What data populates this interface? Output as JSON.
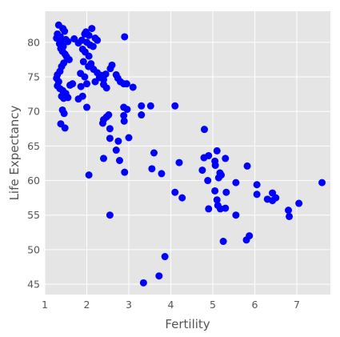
{
  "chart_data": {
    "type": "scatter",
    "title": "",
    "xlabel": "Fertility",
    "ylabel": "Life Expectancy",
    "xlim": [
      1,
      7.8
    ],
    "ylim": [
      43.5,
      84.5
    ],
    "xticks": [
      1,
      2,
      3,
      4,
      5,
      6,
      7
    ],
    "yticks": [
      45,
      50,
      55,
      60,
      65,
      70,
      75,
      80
    ],
    "grid": true,
    "legend": "none",
    "colors": {
      "point": "#0000ff",
      "plot_bg": "#e5e5e5",
      "grid": "#ffffff",
      "text": "#555555"
    },
    "points": [
      [
        1.33,
        82.5
      ],
      [
        1.43,
        82.0
      ],
      [
        1.47,
        81.6
      ],
      [
        1.3,
        81.2
      ],
      [
        1.37,
        80.8
      ],
      [
        1.28,
        80.6
      ],
      [
        1.4,
        80.2
      ],
      [
        1.5,
        80.4
      ],
      [
        1.35,
        79.8
      ],
      [
        1.44,
        79.4
      ],
      [
        1.55,
        80.1
      ],
      [
        1.38,
        79.1
      ],
      [
        1.42,
        78.7
      ],
      [
        1.48,
        78.3
      ],
      [
        1.52,
        77.9
      ],
      [
        1.58,
        77.5
      ],
      [
        1.45,
        77.0
      ],
      [
        1.4,
        76.5
      ],
      [
        1.36,
        75.8
      ],
      [
        1.3,
        75.3
      ],
      [
        1.28,
        74.8
      ],
      [
        1.33,
        74.3
      ],
      [
        1.3,
        73.7
      ],
      [
        1.36,
        73.3
      ],
      [
        1.43,
        73.0
      ],
      [
        1.5,
        72.6
      ],
      [
        1.4,
        72.2
      ],
      [
        1.45,
        71.9
      ],
      [
        1.55,
        72.0
      ],
      [
        1.6,
        73.8
      ],
      [
        1.66,
        74.0
      ],
      [
        1.42,
        70.2
      ],
      [
        1.46,
        69.7
      ],
      [
        1.38,
        68.2
      ],
      [
        1.48,
        67.6
      ],
      [
        1.7,
        80.5
      ],
      [
        1.8,
        79.9
      ],
      [
        1.88,
        80.3
      ],
      [
        1.95,
        81.2
      ],
      [
        1.98,
        81.5
      ],
      [
        2.05,
        81.0
      ],
      [
        2.0,
        80.0
      ],
      [
        2.08,
        79.6
      ],
      [
        1.9,
        79.0
      ],
      [
        1.96,
        78.6
      ],
      [
        2.12,
        82.0
      ],
      [
        2.2,
        80.6
      ],
      [
        2.25,
        80.3
      ],
      [
        2.15,
        79.4
      ],
      [
        2.05,
        78.0
      ],
      [
        1.92,
        77.2
      ],
      [
        2.1,
        76.9
      ],
      [
        2.04,
        76.5
      ],
      [
        2.16,
        76.1
      ],
      [
        2.25,
        75.6
      ],
      [
        2.35,
        75.2
      ],
      [
        2.45,
        75.4
      ],
      [
        2.3,
        74.9
      ],
      [
        2.4,
        74.6
      ],
      [
        2.2,
        74.3
      ],
      [
        1.85,
        75.5
      ],
      [
        1.95,
        75.0
      ],
      [
        2.0,
        74.0
      ],
      [
        1.86,
        73.6
      ],
      [
        1.9,
        72.2
      ],
      [
        1.8,
        71.8
      ],
      [
        2.0,
        70.6
      ],
      [
        2.4,
        73.9
      ],
      [
        2.47,
        73.4
      ],
      [
        2.6,
        76.7
      ],
      [
        2.56,
        76.2
      ],
      [
        2.7,
        75.3
      ],
      [
        2.74,
        74.8
      ],
      [
        2.8,
        74.3
      ],
      [
        2.88,
        74.0
      ],
      [
        2.9,
        80.8
      ],
      [
        2.95,
        74.0
      ],
      [
        3.1,
        73.5
      ],
      [
        2.88,
        70.6
      ],
      [
        2.96,
        70.3
      ],
      [
        2.88,
        69.4
      ],
      [
        3.3,
        70.8
      ],
      [
        3.52,
        70.8
      ],
      [
        3.3,
        69.5
      ],
      [
        2.89,
        68.6
      ],
      [
        2.47,
        69.2
      ],
      [
        2.52,
        69.5
      ],
      [
        2.4,
        68.8
      ],
      [
        2.38,
        68.3
      ],
      [
        2.55,
        67.5
      ],
      [
        2.55,
        66.1
      ],
      [
        2.75,
        65.7
      ],
      [
        3.0,
        66.2
      ],
      [
        2.7,
        64.4
      ],
      [
        2.4,
        63.2
      ],
      [
        2.78,
        62.9
      ],
      [
        2.9,
        61.2
      ],
      [
        2.05,
        60.8
      ],
      [
        3.6,
        64.0
      ],
      [
        3.55,
        61.7
      ],
      [
        3.78,
        61.0
      ],
      [
        4.2,
        62.6
      ],
      [
        4.1,
        70.8
      ],
      [
        4.8,
        67.4
      ],
      [
        4.79,
        63.3
      ],
      [
        4.9,
        63.6
      ],
      [
        5.1,
        64.3
      ],
      [
        5.05,
        62.8
      ],
      [
        5.3,
        63.2
      ],
      [
        5.06,
        62.2
      ],
      [
        4.75,
        61.5
      ],
      [
        5.17,
        61.1
      ],
      [
        5.14,
        60.4
      ],
      [
        5.2,
        60.8
      ],
      [
        4.88,
        60.0
      ],
      [
        5.55,
        59.7
      ],
      [
        5.82,
        62.1
      ],
      [
        6.05,
        59.4
      ],
      [
        5.05,
        58.5
      ],
      [
        5.32,
        58.3
      ],
      [
        5.12,
        56.4
      ],
      [
        5.3,
        56.0
      ],
      [
        5.18,
        55.9
      ],
      [
        4.9,
        55.9
      ],
      [
        5.1,
        57.2
      ],
      [
        5.55,
        55.0
      ],
      [
        6.05,
        58.0
      ],
      [
        6.3,
        57.3
      ],
      [
        6.42,
        58.2
      ],
      [
        6.5,
        57.5
      ],
      [
        6.42,
        57.1
      ],
      [
        6.8,
        55.7
      ],
      [
        6.82,
        54.8
      ],
      [
        7.05,
        56.7
      ],
      [
        7.6,
        59.7
      ],
      [
        4.1,
        58.3
      ],
      [
        4.27,
        57.5
      ],
      [
        2.55,
        55.0
      ],
      [
        5.25,
        51.2
      ],
      [
        5.8,
        51.4
      ],
      [
        5.87,
        52.0
      ],
      [
        3.86,
        49.0
      ],
      [
        3.72,
        46.2
      ],
      [
        3.35,
        45.2
      ]
    ]
  }
}
